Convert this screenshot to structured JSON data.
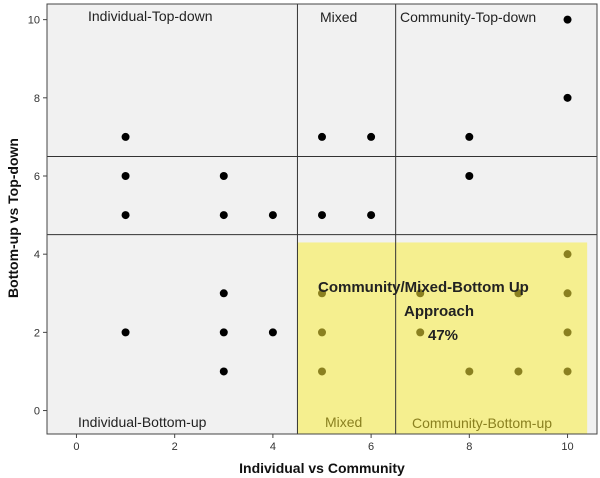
{
  "chart_data": {
    "type": "scatter",
    "xlabel": "Individual vs Community",
    "ylabel": "Bottom-up vs Top-down",
    "xlim": [
      -0.6,
      10.6
    ],
    "ylim": [
      -0.6,
      10.4
    ],
    "xticks": [
      "0",
      "2",
      "4",
      "6",
      "8",
      "10"
    ],
    "yticks": [
      "0",
      "2",
      "4",
      "6",
      "8",
      "10"
    ],
    "grid": false,
    "x_dividers": [
      4.5,
      6.5
    ],
    "y_dividers": [
      4.5,
      6.5
    ],
    "zone_labels": {
      "individual_top_down": "Individual-Top-down",
      "mixed_top": "Mixed",
      "community_top_down": "Community-Top-down",
      "individual_bottom_up": "Individual-Bottom-up",
      "mixed_bottom": "Mixed",
      "community_bottom_up": "Community-Bottom-up"
    },
    "highlight": {
      "x_range": [
        4.5,
        10.4
      ],
      "y_range": [
        -0.6,
        4.3
      ],
      "color": "#f5ef8f",
      "label_line1": "Community/Mixed-Bottom Up",
      "label_line2": "Approach",
      "percent": "47%"
    },
    "colors": {
      "background": "#f1f1f1",
      "point": "#000000",
      "point_highlighted": "#8a8020",
      "divider": "#333333"
    },
    "points": [
      {
        "x": 10,
        "y": 10
      },
      {
        "x": 10,
        "y": 8
      },
      {
        "x": 1,
        "y": 7
      },
      {
        "x": 5,
        "y": 7
      },
      {
        "x": 6,
        "y": 7
      },
      {
        "x": 8,
        "y": 7
      },
      {
        "x": 1,
        "y": 6
      },
      {
        "x": 3,
        "y": 6
      },
      {
        "x": 8,
        "y": 6
      },
      {
        "x": 1,
        "y": 5
      },
      {
        "x": 3,
        "y": 5
      },
      {
        "x": 4,
        "y": 5
      },
      {
        "x": 5,
        "y": 5
      },
      {
        "x": 6,
        "y": 5
      },
      {
        "x": 10,
        "y": 4
      },
      {
        "x": 3,
        "y": 3
      },
      {
        "x": 5,
        "y": 3
      },
      {
        "x": 7,
        "y": 3
      },
      {
        "x": 9,
        "y": 3
      },
      {
        "x": 10,
        "y": 3
      },
      {
        "x": 1,
        "y": 2
      },
      {
        "x": 3,
        "y": 2
      },
      {
        "x": 4,
        "y": 2
      },
      {
        "x": 5,
        "y": 2
      },
      {
        "x": 7,
        "y": 2
      },
      {
        "x": 10,
        "y": 2
      },
      {
        "x": 3,
        "y": 1
      },
      {
        "x": 5,
        "y": 1
      },
      {
        "x": 8,
        "y": 1
      },
      {
        "x": 9,
        "y": 1
      },
      {
        "x": 10,
        "y": 1
      }
    ]
  }
}
